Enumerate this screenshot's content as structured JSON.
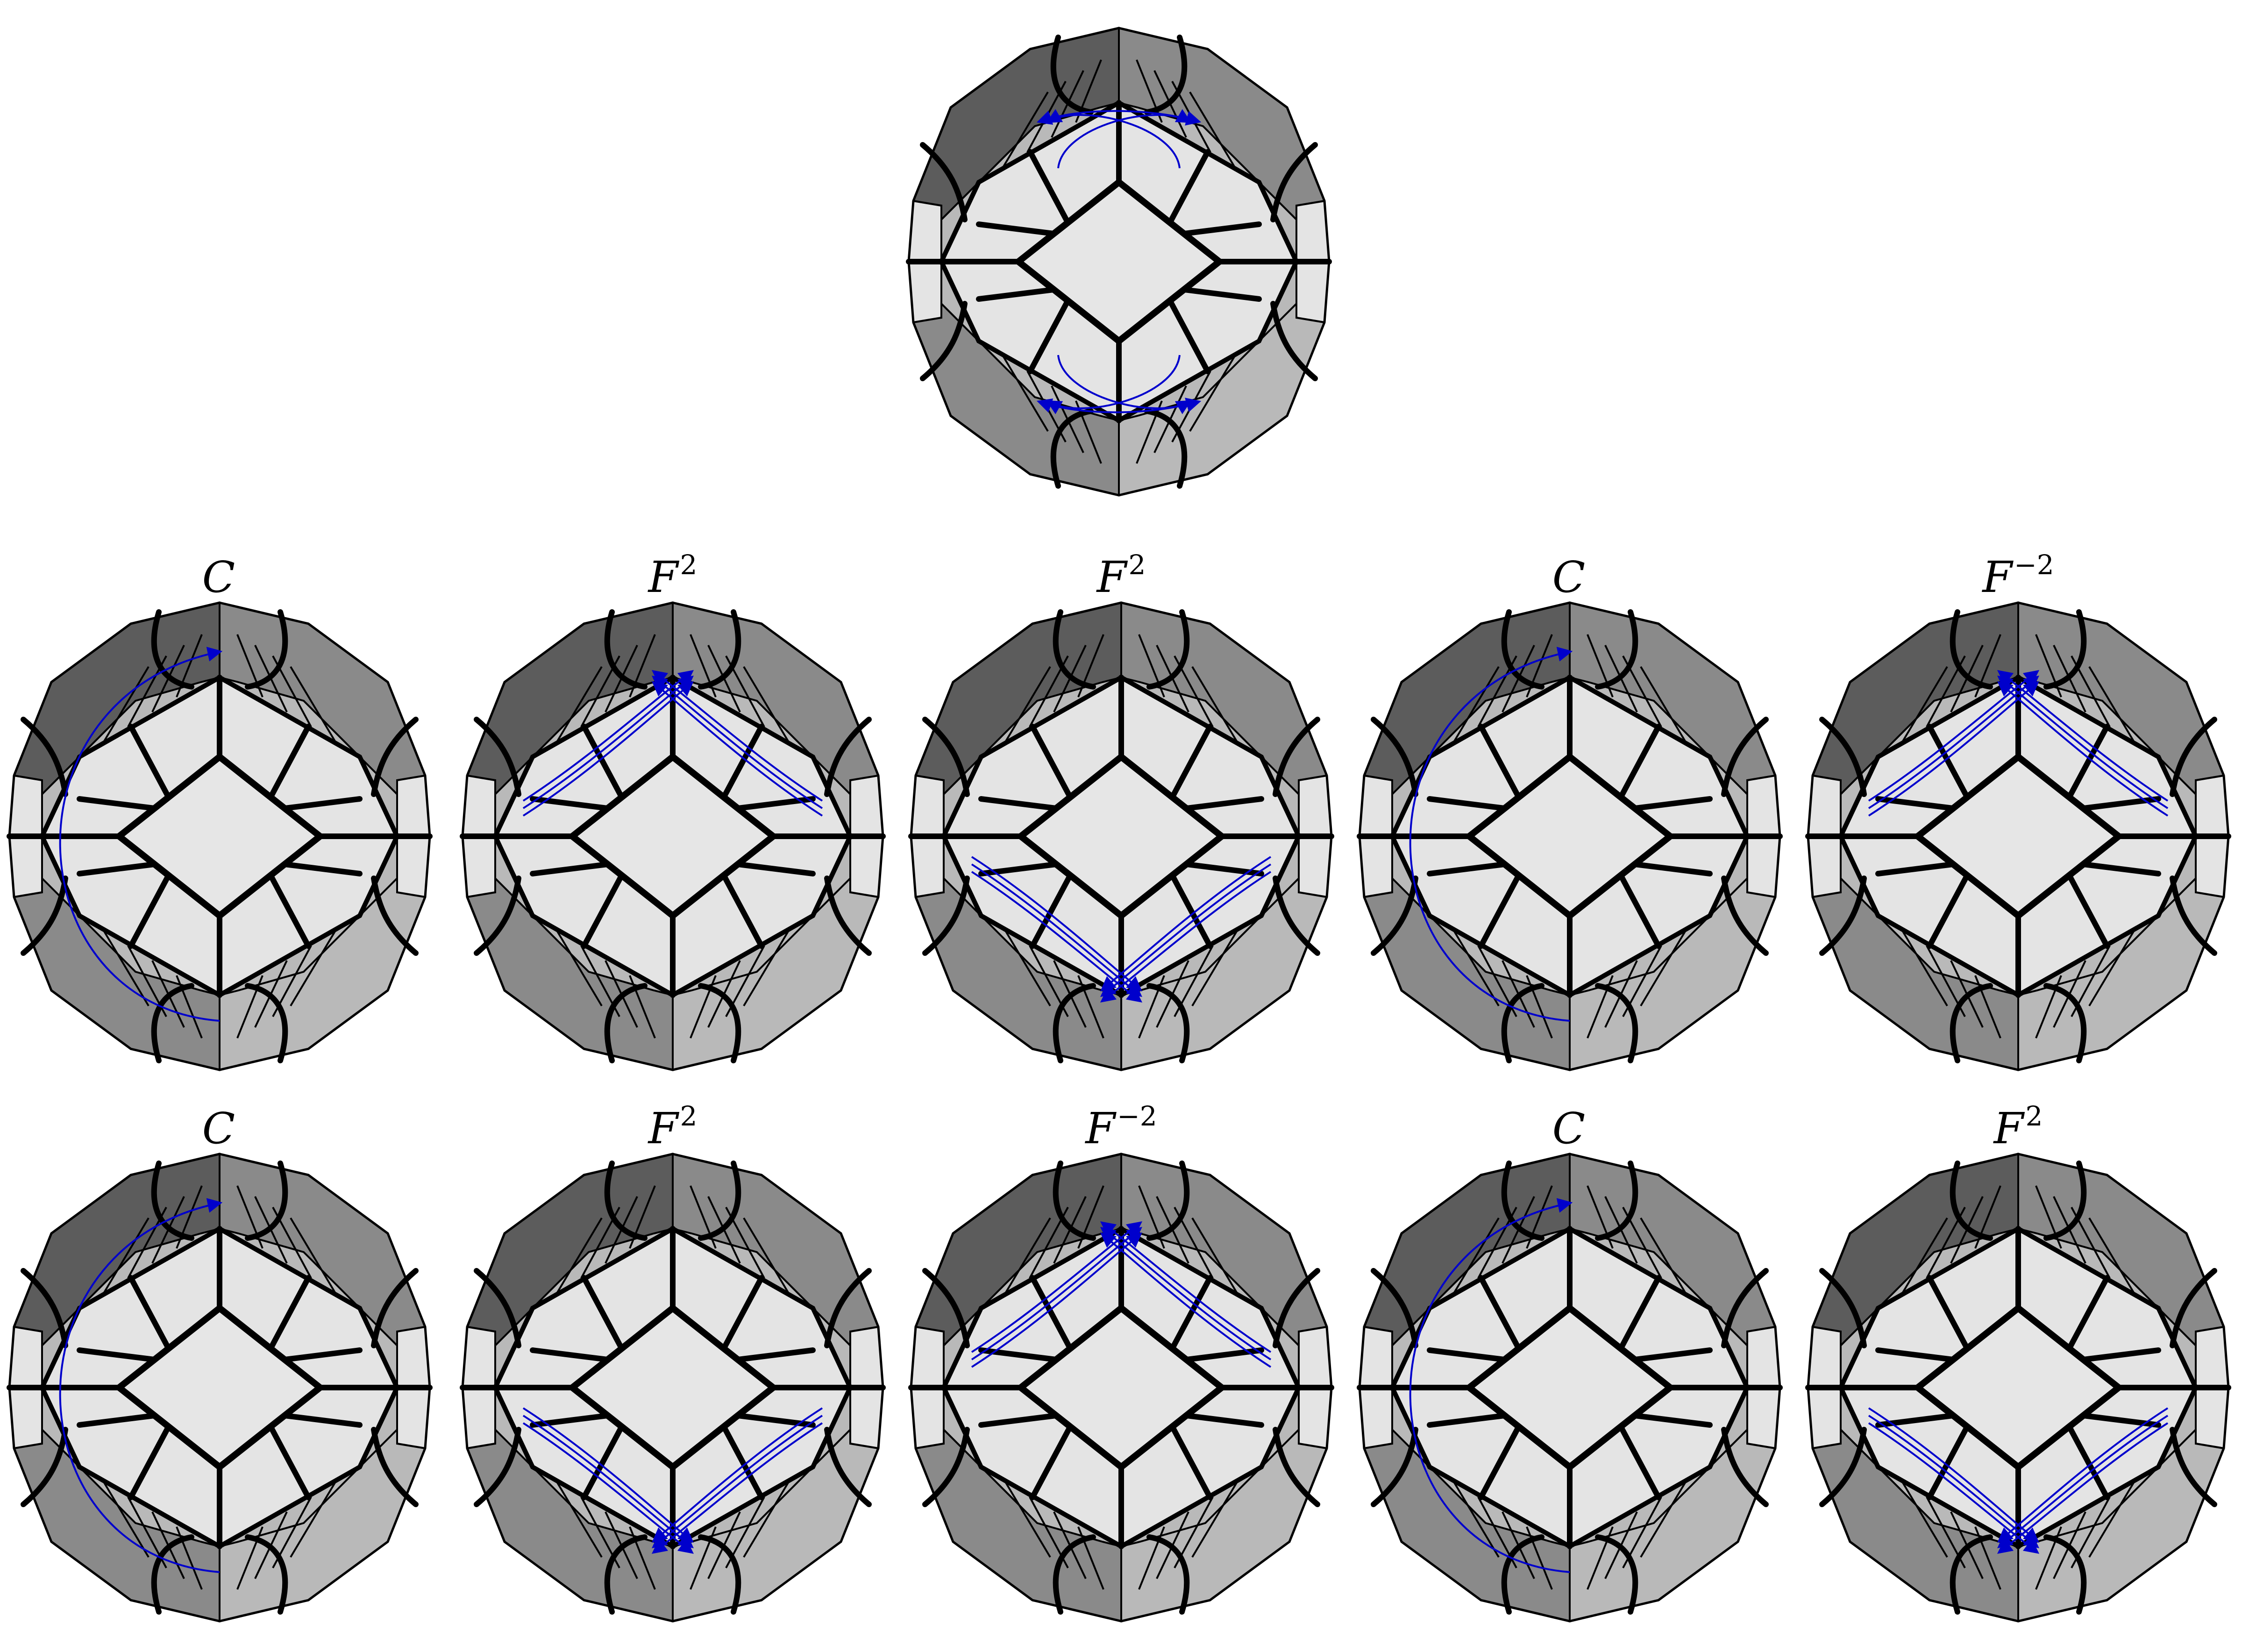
{
  "top_puzzle": {
    "arrows": "top-and-bottom-swap"
  },
  "rows": [
    {
      "panels": [
        {
          "move": "C",
          "exp": "",
          "arrows": "left-arc"
        },
        {
          "move": "F",
          "exp": "2",
          "arrows": "upper-v"
        },
        {
          "move": "F",
          "exp": "2",
          "arrows": "lower-v"
        },
        {
          "move": "C",
          "exp": "",
          "arrows": "left-arc"
        },
        {
          "move": "F",
          "exp": "−2",
          "arrows": "upper-v"
        }
      ]
    },
    {
      "panels": [
        {
          "move": "C",
          "exp": "",
          "arrows": "left-arc"
        },
        {
          "move": "F",
          "exp": "2",
          "arrows": "lower-v"
        },
        {
          "move": "F",
          "exp": "−2",
          "arrows": "upper-v"
        },
        {
          "move": "C",
          "exp": "",
          "arrows": "left-arc"
        },
        {
          "move": "F",
          "exp": "2",
          "arrows": "lower-v"
        }
      ]
    }
  ],
  "colors": {
    "face_light": "#e4e4e4",
    "face_mid": "#b9b9b9",
    "face_dark": "#8a8a8a",
    "face_darker": "#5c5c5c",
    "edge": "#000000",
    "arrow": "#0000cc"
  }
}
